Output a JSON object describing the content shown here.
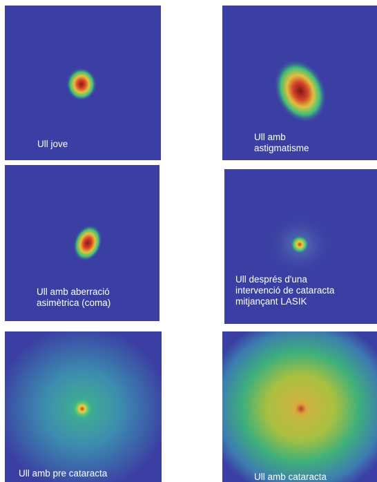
{
  "panels": [
    {
      "caption": "Ull jove"
    },
    {
      "caption": "Ull amb\nastigmatisme"
    },
    {
      "caption": "Ull amb aberració\nasimètrica (coma)"
    },
    {
      "caption": "Ull després d'una\nintervenció de cataracta\nmitjançant LASIK"
    },
    {
      "caption": "Ull amb pre cataracta"
    },
    {
      "caption": "Ull amb cataracta"
    }
  ],
  "colors": {
    "background": "#3b3fa3",
    "core": "#c0302a",
    "mid": "#e0c040",
    "halo": "#3ea88a"
  }
}
